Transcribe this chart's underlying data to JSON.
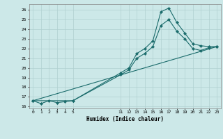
{
  "xlabel": "Humidex (Indice chaleur)",
  "bg_color": "#cce8e8",
  "grid_color": "#b0d0d0",
  "line_color": "#1a6b6b",
  "marker": "D",
  "markersize": 2.2,
  "linewidth": 0.8,
  "xlim": [
    -0.5,
    23.5
  ],
  "ylim": [
    15.8,
    26.6
  ],
  "xtick_positions": [
    0,
    1,
    2,
    3,
    4,
    5,
    11,
    12,
    13,
    14,
    15,
    16,
    17,
    18,
    19,
    20,
    21,
    22,
    23
  ],
  "xtick_labels": [
    "0",
    "1",
    "2",
    "3",
    "4",
    "5",
    "11",
    "12",
    "13",
    "14",
    "15",
    "16",
    "17",
    "18",
    "19",
    "20",
    "21",
    "22",
    "23"
  ],
  "ytick_positions": [
    16,
    17,
    18,
    19,
    20,
    21,
    22,
    23,
    24,
    25,
    26
  ],
  "ytick_labels": [
    "16",
    "17",
    "18",
    "19",
    "20",
    "21",
    "22",
    "23",
    "24",
    "25",
    "26"
  ],
  "line1_x": [
    0,
    1,
    2,
    3,
    4,
    5,
    11,
    12,
    13,
    14,
    15,
    16,
    17,
    18,
    19,
    20,
    21,
    22,
    23
  ],
  "line1_y": [
    16.6,
    16.3,
    16.6,
    16.4,
    16.5,
    16.6,
    19.5,
    20.0,
    21.5,
    22.0,
    22.8,
    25.8,
    26.2,
    24.7,
    23.6,
    22.5,
    22.3,
    22.2,
    22.2
  ],
  "line2_x": [
    0,
    5,
    11,
    12,
    13,
    14,
    15,
    16,
    17,
    18,
    19,
    20,
    21,
    22,
    23
  ],
  "line2_y": [
    16.6,
    16.6,
    19.3,
    19.8,
    21.0,
    21.5,
    22.2,
    24.4,
    25.0,
    23.8,
    23.0,
    22.0,
    21.8,
    22.1,
    22.2
  ],
  "line3_x": [
    0,
    23
  ],
  "line3_y": [
    16.6,
    22.2
  ]
}
